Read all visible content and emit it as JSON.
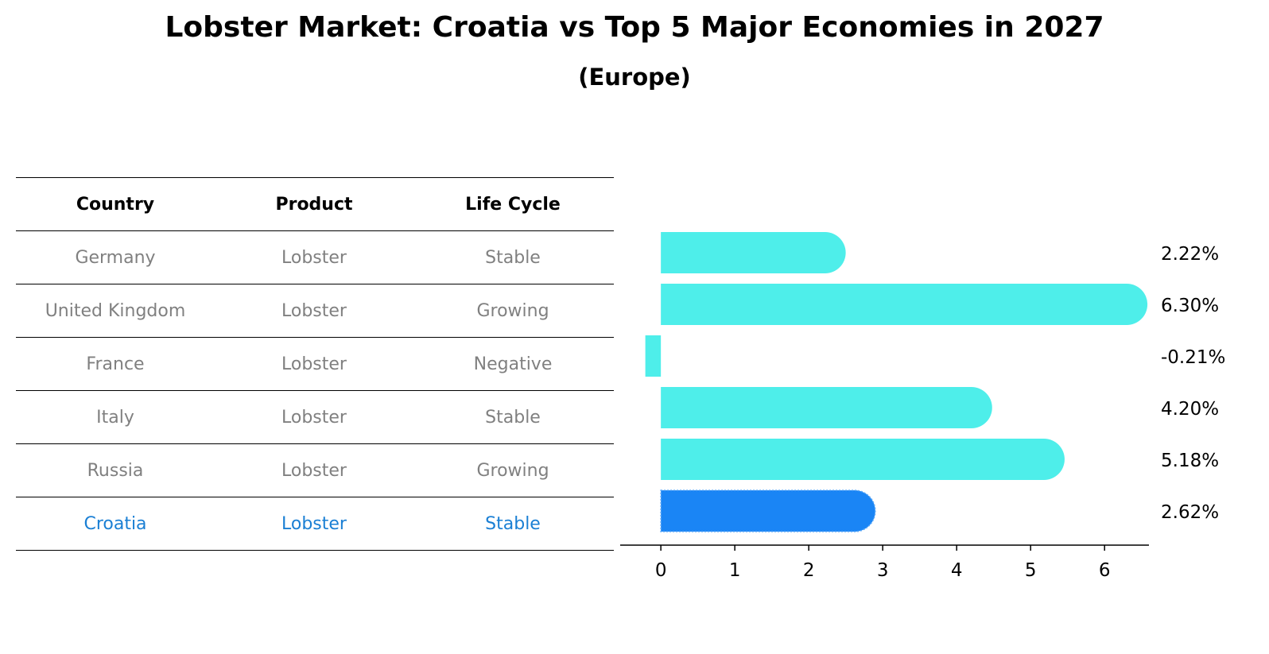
{
  "header": {
    "title": "Lobster Market: Croatia vs Top 5 Major Economies in 2027",
    "subtitle": "(Europe)"
  },
  "table": {
    "columns": [
      "Country",
      "Product",
      "Life Cycle"
    ],
    "rows": [
      [
        "Germany",
        "Lobster",
        "Stable"
      ],
      [
        "United Kingdom",
        "Lobster",
        "Growing"
      ],
      [
        "France",
        "Lobster",
        "Negative"
      ],
      [
        "Italy",
        "Lobster",
        "Stable"
      ],
      [
        "Russia",
        "Lobster",
        "Growing"
      ],
      [
        "Croatia",
        "Lobster",
        "Stable"
      ]
    ],
    "highlight_row": 5
  },
  "colors": {
    "bar": "#4eeeea",
    "highlight_bar": "#1a85f5",
    "muted_text": "#808080",
    "highlight_text": "#1a7fd4"
  },
  "chart_data": {
    "type": "bar",
    "orientation": "horizontal",
    "categories": [
      "Germany",
      "United Kingdom",
      "France",
      "Italy",
      "Russia",
      "Croatia"
    ],
    "values": [
      2.22,
      6.3,
      -0.21,
      4.2,
      5.18,
      2.62
    ],
    "value_labels": [
      "2.22%",
      "6.30%",
      "-0.21%",
      "4.20%",
      "5.18%",
      "2.62%"
    ],
    "highlight_index": 5,
    "xlim": [
      -0.55,
      6.6
    ],
    "xticks": [
      0,
      1,
      2,
      3,
      4,
      5,
      6
    ],
    "xtick_labels": [
      "0",
      "1",
      "2",
      "3",
      "4",
      "5",
      "6"
    ],
    "grid": false
  }
}
